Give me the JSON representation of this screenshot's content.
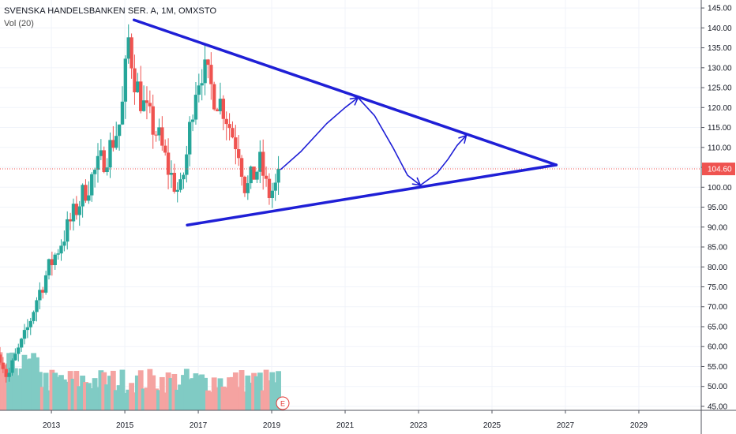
{
  "legend": {
    "title": "SVENSKA HANDELSBANKEN SER. A, 1M, OMXSTO",
    "volume": "Vol (20)"
  },
  "earnings_marker": "E",
  "colors": {
    "up": "#26a69a",
    "down": "#ef5350",
    "vol_up": "#80cbc4",
    "vol_down": "#f5a3a1",
    "drawing": "#1f1fd6",
    "price_line": "#ef5350",
    "grid": "#f0f3fa"
  },
  "chart_data": {
    "type": "candlestick",
    "interval": "1M",
    "xlim": [
      2011.6,
      2030.7
    ],
    "ylim": [
      44.0,
      147.0
    ],
    "y_ticks": [
      45,
      50,
      55,
      60,
      65,
      70,
      75,
      80,
      85,
      90,
      95,
      100,
      105,
      110,
      115,
      120,
      125,
      130,
      135,
      140,
      145
    ],
    "y_tick_labels": [
      "45.00",
      "50.00",
      "55.00",
      "60.00",
      "65.00",
      "70.00",
      "75.00",
      "80.00",
      "85.00",
      "90.00",
      "95.00",
      "100.00",
      "105.00",
      "110.00",
      "115.00",
      "120.00",
      "125.00",
      "130.00",
      "135.00",
      "140.00",
      "145.00"
    ],
    "x_ticks": [
      2013,
      2015,
      2017,
      2019,
      2021,
      2023,
      2025,
      2027,
      2029
    ],
    "x_tick_labels": [
      "2013",
      "2015",
      "2017",
      "2019",
      "2021",
      "2023",
      "2025",
      "2027",
      "2029"
    ],
    "last_price": 104.6,
    "last_price_label": "104.60",
    "earnings_marker_x": 2019.3,
    "anchors": [
      [
        2011.6,
        58
      ],
      [
        2011.8,
        52
      ],
      [
        2012.0,
        57
      ],
      [
        2012.3,
        63
      ],
      [
        2012.6,
        72
      ],
      [
        2012.9,
        79
      ],
      [
        2013.2,
        85
      ],
      [
        2013.5,
        91
      ],
      [
        2013.9,
        99
      ],
      [
        2014.2,
        104
      ],
      [
        2014.6,
        110
      ],
      [
        2014.9,
        117
      ],
      [
        2015.1,
        137
      ],
      [
        2015.3,
        126
      ],
      [
        2015.6,
        118
      ],
      [
        2015.9,
        113
      ],
      [
        2016.2,
        104
      ],
      [
        2016.5,
        98
      ],
      [
        2016.7,
        109
      ],
      [
        2016.9,
        125
      ],
      [
        2017.1,
        130
      ],
      [
        2017.4,
        124
      ],
      [
        2017.7,
        120
      ],
      [
        2017.9,
        114
      ],
      [
        2018.1,
        110
      ],
      [
        2018.3,
        99
      ],
      [
        2018.5,
        103
      ],
      [
        2018.7,
        106
      ],
      [
        2018.9,
        98
      ],
      [
        2019.1,
        100
      ],
      [
        2019.2,
        104.6
      ]
    ],
    "trendlines": [
      {
        "from": [
          2015.25,
          142.0
        ],
        "to": [
          2026.75,
          105.6
        ]
      },
      {
        "from": [
          2016.7,
          90.5
        ],
        "to": [
          2026.75,
          105.6
        ]
      }
    ],
    "projection_path": [
      [
        2019.25,
        104.5
      ],
      [
        2019.8,
        109.0
      ],
      [
        2020.5,
        116.0
      ],
      [
        2021.0,
        120.0
      ],
      [
        2021.35,
        122.5
      ],
      [
        2021.8,
        118.0
      ],
      [
        2022.3,
        110.0
      ],
      [
        2022.7,
        103.0
      ],
      [
        2023.05,
        100.5
      ],
      [
        2023.5,
        103.5
      ],
      [
        2023.8,
        107.0
      ],
      [
        2024.05,
        110.5
      ],
      [
        2024.3,
        113.0
      ]
    ],
    "arrowheads": [
      [
        2021.35,
        122.5
      ],
      [
        2023.05,
        100.5
      ],
      [
        2024.3,
        113.0
      ]
    ]
  }
}
